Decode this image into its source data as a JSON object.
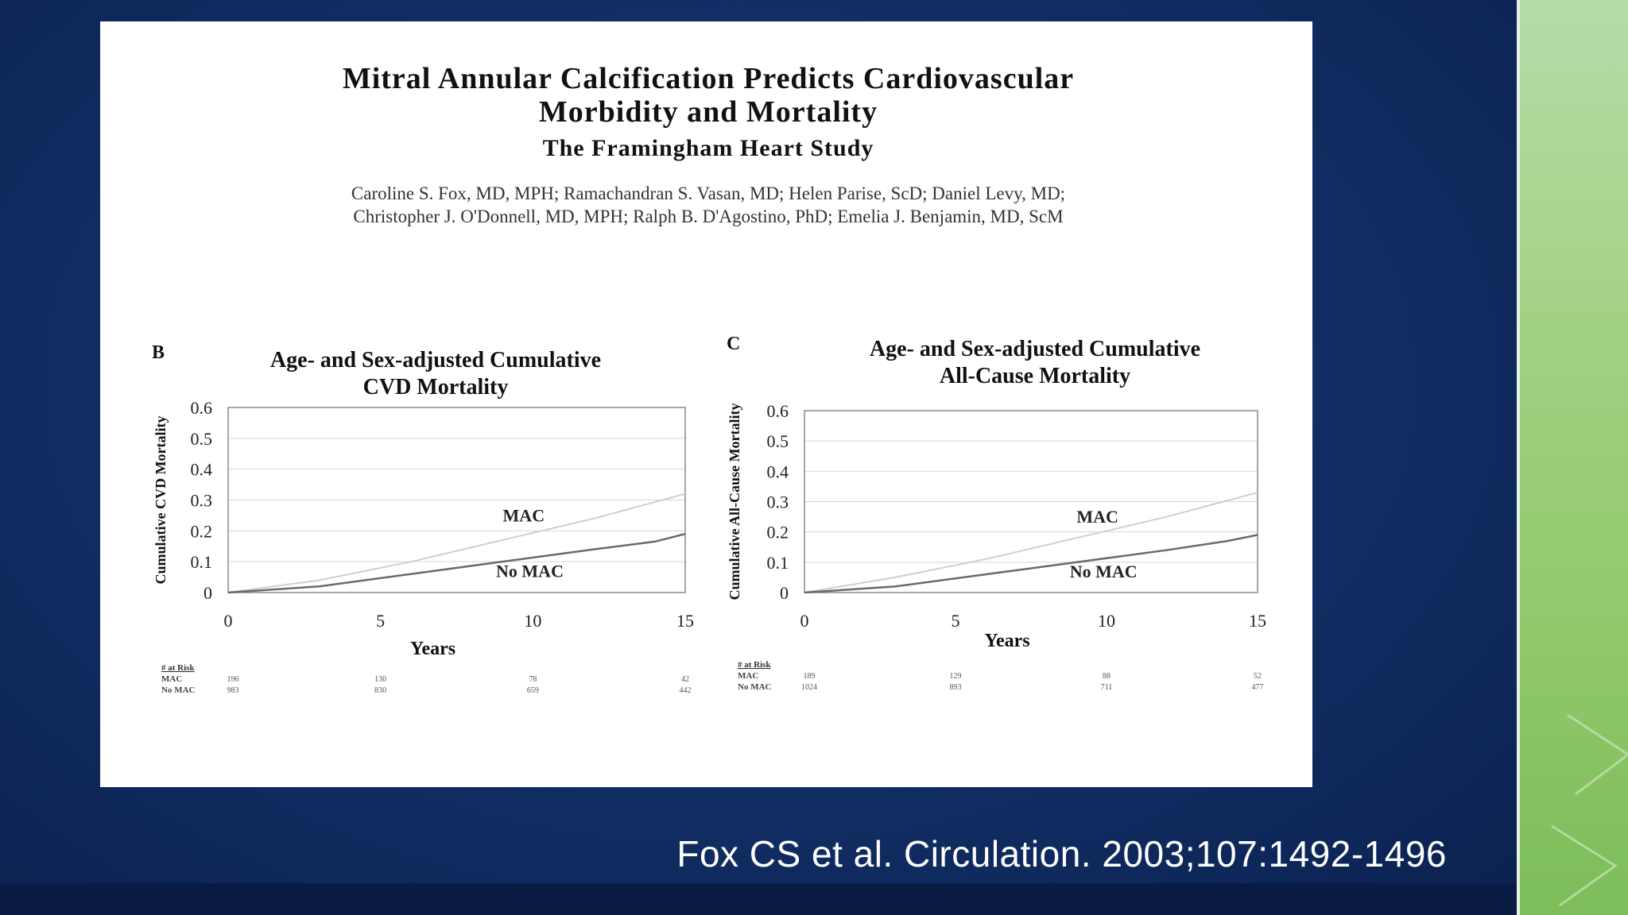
{
  "colors": {
    "background": "#123068",
    "card": "#ffffff",
    "text": "#111111",
    "axis": "#888888",
    "grid": "#cccccc",
    "mac_line": "#cfcfcf",
    "nomac_line": "#6e6e6e",
    "green": "#9ccf7a"
  },
  "paper": {
    "title_line1": "Mitral Annular Calcification Predicts Cardiovascular",
    "title_line2": "Morbidity and Mortality",
    "subtitle": "The Framingham Heart Study",
    "authors_line1": "Caroline S. Fox, MD, MPH; Ramachandran S. Vasan, MD; Helen Parise, ScD; Daniel Levy, MD;",
    "authors_line2": "Christopher J. O'Donnell, MD, MPH; Ralph B. D'Agostino, PhD; Emelia J. Benjamin, MD, ScM"
  },
  "citation": "Fox CS et al. Circulation. 2003;107:1492-1496",
  "chart_data": [
    {
      "type": "line",
      "panel_label": "B",
      "title_line1": "Age- and Sex-adjusted Cumulative",
      "title_line2": "CVD Mortality",
      "xlabel": "Years",
      "ylabel": "Cumulative CVD Mortality",
      "xlim": [
        0,
        15
      ],
      "ylim": [
        0,
        0.6
      ],
      "xticks": [
        "0",
        "5",
        "10",
        "15"
      ],
      "yticks": [
        "0",
        "0.1",
        "0.2",
        "0.3",
        "0.4",
        "0.5",
        "0.6"
      ],
      "series": [
        {
          "name": "MAC",
          "x": [
            0,
            3,
            6,
            9,
            12,
            15
          ],
          "y": [
            0,
            0.04,
            0.1,
            0.17,
            0.24,
            0.32
          ]
        },
        {
          "name": "No MAC",
          "x": [
            0,
            3,
            6,
            9,
            12,
            14,
            15
          ],
          "y": [
            0,
            0.02,
            0.06,
            0.1,
            0.14,
            0.165,
            0.19
          ]
        }
      ],
      "at_risk": {
        "header": "# at Risk",
        "rows": [
          {
            "label": "MAC",
            "values": [
              "196",
              "130",
              "78",
              "42"
            ]
          },
          {
            "label": "No MAC",
            "values": [
              "983",
              "830",
              "659",
              "442"
            ]
          }
        ]
      }
    },
    {
      "type": "line",
      "panel_label": "C",
      "title_line1": "Age- and Sex-adjusted Cumulative",
      "title_line2": "All-Cause Mortality",
      "xlabel": "Years",
      "ylabel": "Cumulative All-Cause Mortality",
      "xlim": [
        0,
        15
      ],
      "ylim": [
        0,
        0.6
      ],
      "xticks": [
        "0",
        "5",
        "10",
        "15"
      ],
      "yticks": [
        "0",
        "0.1",
        "0.2",
        "0.3",
        "0.4",
        "0.5",
        "0.6"
      ],
      "series": [
        {
          "name": "MAC",
          "x": [
            0,
            3,
            6,
            9,
            12,
            15
          ],
          "y": [
            0,
            0.05,
            0.11,
            0.18,
            0.25,
            0.33
          ]
        },
        {
          "name": "No MAC",
          "x": [
            0,
            3,
            6,
            9,
            12,
            14,
            15
          ],
          "y": [
            0,
            0.02,
            0.06,
            0.1,
            0.14,
            0.17,
            0.19
          ]
        }
      ],
      "at_risk": {
        "header": "# at Risk",
        "rows": [
          {
            "label": "MAC",
            "values": [
              "189",
              "129",
              "88",
              "52"
            ]
          },
          {
            "label": "No MAC",
            "values": [
              "1024",
              "893",
              "711",
              "477"
            ]
          }
        ]
      }
    }
  ]
}
